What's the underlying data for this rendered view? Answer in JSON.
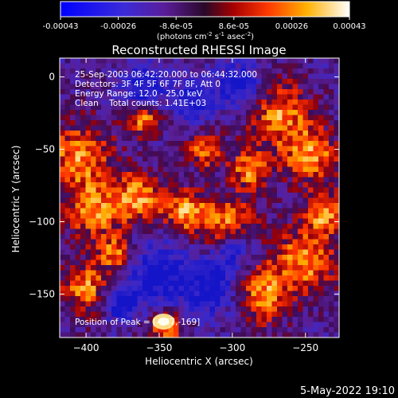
{
  "chart_data": {
    "type": "heatmap",
    "title": "Reconstructed RHESSI Image",
    "xlabel": "Heliocentric X (arcsec)",
    "ylabel": "Heliocentric Y (arcsec)",
    "xlim": [
      -418,
      -227
    ],
    "ylim": [
      -180,
      13
    ],
    "xticks": [
      -400,
      -350,
      -300,
      -250
    ],
    "yticks": [
      0,
      -50,
      -100,
      -150
    ],
    "colorbar": {
      "ticks": [
        "-0.00043",
        "-0.00026",
        "-8.6e-05",
        "8.6e-05",
        "0.00026",
        "0.00043"
      ],
      "range": [
        -0.00043,
        0.00043
      ],
      "units_line1": "(photons cm",
      "units_sup1": "-2",
      "units_mid": " s",
      "units_sup2": "-1",
      "units_line2": " asec",
      "units_sup3": "-2",
      "units_end": ")",
      "colormap": "blue-violet-red-orange-yellow-white"
    },
    "info_lines": [
      "25-Sep-2003 06:42:20.000 to 06:44:32.000",
      "Detectors: 3F 4F 5F 6F 7F 8F, Att 0",
      "Energy Range: 12.0 - 25.0 keV",
      "Clean    Total counts: 1.41E+03"
    ],
    "peak_label": "Position of Peak = [-347,-169]",
    "peak_position": [
      -347,
      -169
    ]
  },
  "timestamp": "5-May-2022 19:10"
}
